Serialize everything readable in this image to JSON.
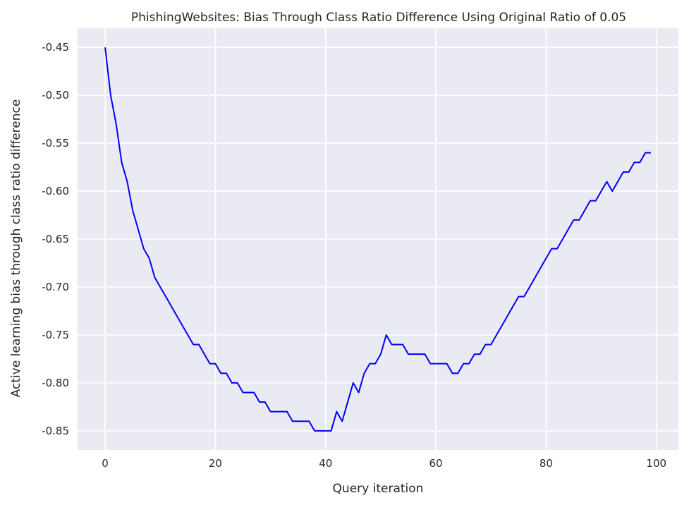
{
  "chart_data": {
    "type": "line",
    "title": "PhishingWebsites: Bias Through Class Ratio Difference Using Original Ratio of 0.05",
    "xlabel": "Query iteration",
    "ylabel": "Active learning bias through class ratio difference",
    "xlim": [
      -5,
      104
    ],
    "ylim": [
      -0.87,
      -0.43
    ],
    "x_ticks": [
      0,
      20,
      40,
      60,
      80,
      100
    ],
    "x_tick_labels": [
      "0",
      "20",
      "40",
      "60",
      "80",
      "100"
    ],
    "y_ticks": [
      -0.45,
      -0.5,
      -0.55,
      -0.6,
      -0.65,
      -0.7,
      -0.75,
      -0.8,
      -0.85
    ],
    "y_tick_labels": [
      "-0.45",
      "-0.50",
      "-0.55",
      "-0.60",
      "-0.65",
      "-0.70",
      "-0.75",
      "-0.80",
      "-0.85"
    ],
    "grid": true,
    "background": "#eaeaf2",
    "grid_color": "#ffffff",
    "series": [
      {
        "color": "#0000ff",
        "x": [
          0,
          1,
          2,
          3,
          4,
          5,
          6,
          7,
          8,
          9,
          10,
          11,
          12,
          13,
          14,
          15,
          16,
          17,
          18,
          19,
          20,
          21,
          22,
          23,
          24,
          25,
          26,
          27,
          28,
          29,
          30,
          31,
          32,
          33,
          34,
          35,
          36,
          37,
          38,
          39,
          40,
          41,
          42,
          43,
          44,
          45,
          46,
          47,
          48,
          49,
          50,
          51,
          52,
          53,
          54,
          55,
          56,
          57,
          58,
          59,
          60,
          61,
          62,
          63,
          64,
          65,
          66,
          67,
          68,
          69,
          70,
          71,
          72,
          73,
          74,
          75,
          76,
          77,
          78,
          79,
          80,
          81,
          82,
          83,
          84,
          85,
          86,
          87,
          88,
          89,
          90,
          91,
          92,
          93,
          94,
          95,
          96,
          97,
          98,
          99
        ],
        "y": [
          -0.45,
          -0.5,
          -0.53,
          -0.57,
          -0.59,
          -0.62,
          -0.64,
          -0.66,
          -0.67,
          -0.69,
          -0.7,
          -0.71,
          -0.72,
          -0.73,
          -0.74,
          -0.75,
          -0.76,
          -0.76,
          -0.77,
          -0.78,
          -0.78,
          -0.79,
          -0.79,
          -0.8,
          -0.8,
          -0.81,
          -0.81,
          -0.81,
          -0.82,
          -0.82,
          -0.83,
          -0.83,
          -0.83,
          -0.83,
          -0.84,
          -0.84,
          -0.84,
          -0.84,
          -0.85,
          -0.85,
          -0.85,
          -0.85,
          -0.83,
          -0.84,
          -0.82,
          -0.8,
          -0.81,
          -0.79,
          -0.78,
          -0.78,
          -0.77,
          -0.75,
          -0.76,
          -0.76,
          -0.76,
          -0.77,
          -0.77,
          -0.77,
          -0.77,
          -0.78,
          -0.78,
          -0.78,
          -0.78,
          -0.79,
          -0.79,
          -0.78,
          -0.78,
          -0.77,
          -0.77,
          -0.76,
          -0.76,
          -0.75,
          -0.74,
          -0.73,
          -0.72,
          -0.71,
          -0.71,
          -0.7,
          -0.69,
          -0.68,
          -0.67,
          -0.66,
          -0.66,
          -0.65,
          -0.64,
          -0.63,
          -0.63,
          -0.62,
          -0.61,
          -0.61,
          -0.6,
          -0.59,
          -0.6,
          -0.59,
          -0.58,
          -0.58,
          -0.57,
          -0.57,
          -0.56,
          -0.56
        ]
      }
    ]
  }
}
